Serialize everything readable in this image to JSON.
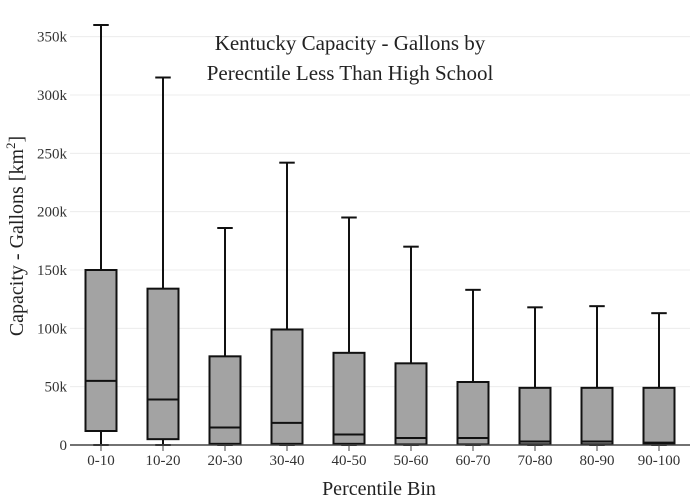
{
  "chart_data": {
    "type": "box",
    "title_lines": [
      "Kentucky Capacity - Gallons by",
      "Perecntile Less Than High School"
    ],
    "xlabel": "Percentile Bin",
    "ylabel_main": "Capacity - Gallons  [km",
    "ylabel_sup": "2",
    "ylabel_end": "]",
    "ylim": [
      0,
      360000
    ],
    "yticks": [
      0,
      50000,
      100000,
      150000,
      200000,
      250000,
      300000,
      350000
    ],
    "ytick_labels": [
      "0",
      "50k",
      "100k",
      "150k",
      "200k",
      "250k",
      "300k",
      "350k"
    ],
    "grid": true,
    "box_color": "#a3a3a3",
    "line_color": "#111111",
    "categories": [
      "0-10",
      "10-20",
      "20-30",
      "30-40",
      "40-50",
      "50-60",
      "60-70",
      "70-80",
      "80-90",
      "90-100"
    ],
    "boxes": [
      {
        "min": 0,
        "q1": 12000,
        "median": 55000,
        "q3": 150000,
        "max": 360000
      },
      {
        "min": 0,
        "q1": 5000,
        "median": 39000,
        "q3": 134000,
        "max": 315000
      },
      {
        "min": 0,
        "q1": 1000,
        "median": 15000,
        "q3": 76000,
        "max": 186000
      },
      {
        "min": 0,
        "q1": 1000,
        "median": 19000,
        "q3": 99000,
        "max": 242000
      },
      {
        "min": 0,
        "q1": 1000,
        "median": 9000,
        "q3": 79000,
        "max": 195000
      },
      {
        "min": 0,
        "q1": 500,
        "median": 6000,
        "q3": 70000,
        "max": 170000
      },
      {
        "min": 0,
        "q1": 500,
        "median": 6000,
        "q3": 54000,
        "max": 133000
      },
      {
        "min": 0,
        "q1": 500,
        "median": 3000,
        "q3": 49000,
        "max": 118000
      },
      {
        "min": 0,
        "q1": 500,
        "median": 3000,
        "q3": 49000,
        "max": 119000
      },
      {
        "min": 0,
        "q1": 500,
        "median": 2000,
        "q3": 49000,
        "max": 113000
      }
    ]
  }
}
